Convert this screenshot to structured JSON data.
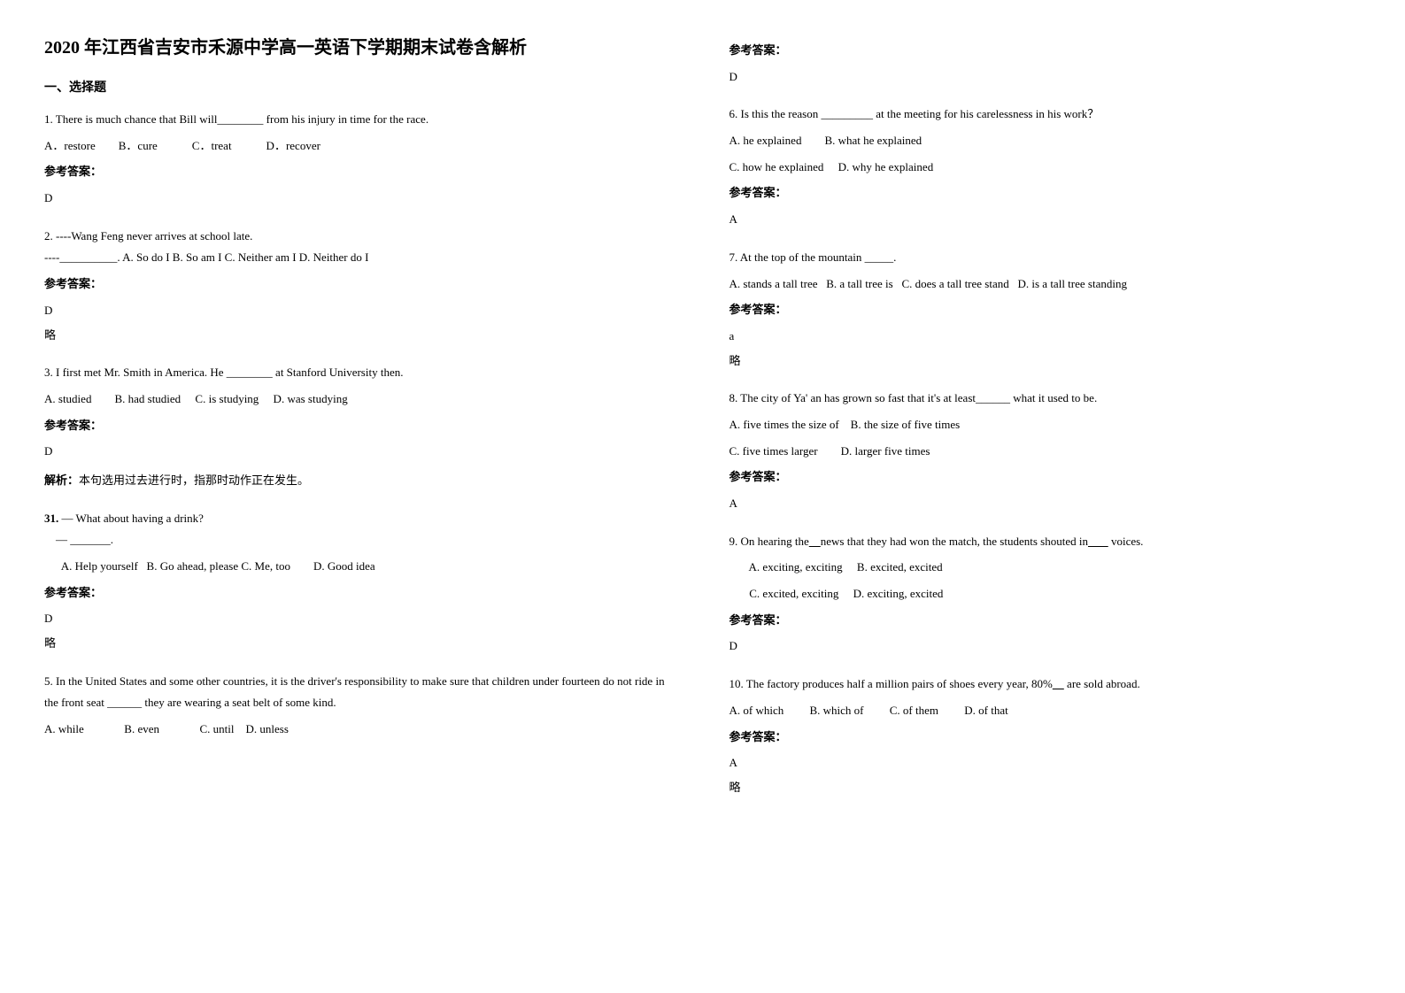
{
  "title": "2020 年江西省吉安市禾源中学高一英语下学期期末试卷含解析",
  "section1_heading": "一、选择题",
  "q1": {
    "text": "1. There is much chance that Bill will________ from his injury in time for the race.",
    "opts": "A．restore        B．cure            C．treat            D．recover",
    "answer_label": "参考答案：",
    "answer": "D"
  },
  "q2": {
    "text": "2. ----Wang Feng never arrives at school late.",
    "text2": "----__________. A. So do I        B. So am I        C. Neither am I   D. Neither do I",
    "answer_label": "参考答案：",
    "answer": "D",
    "omit": "略"
  },
  "q3": {
    "text": "3. I first met Mr. Smith in America. He ________ at Stanford University then.",
    "opts": "A. studied        B. had studied     C. is studying     D. was studying",
    "answer_label": "参考答案：",
    "answer": "D",
    "explanation_label": "解析：",
    "explanation": "本句选用过去进行时，指那时动作正在发生。"
  },
  "q31": {
    "text": "31. — What about having a drink?",
    "text2": "    — _______.",
    "opts": "      A. Help yourself   B. Go ahead, please C. Me, too        D. Good idea",
    "answer_label": "参考答案：",
    "answer": "D",
    "omit": "略"
  },
  "q5": {
    "text": "5. In the United States and some other countries, it is the driver's responsibility to make sure that children under fourteen do not ride in the front seat ______ they are wearing a seat belt of some kind.",
    "opts": "A. while              B. even              C. until    D. unless",
    "answer_label": "参考答案：",
    "answer": "D"
  },
  "q6": {
    "text": "6. Is this the reason _________ at the meeting for his carelessness in his work？",
    "opts1": "A. he explained        B. what he explained",
    "opts2": "C. how he explained     D. why he explained",
    "answer_label": "参考答案：",
    "answer": "A"
  },
  "q7": {
    "text": "7. At the top of the mountain _____.",
    "opts": "A. stands a tall tree   B. a tall tree is   C. does a tall tree stand   D. is a tall tree standing",
    "answer_label": "参考答案：",
    "answer": "a",
    "omit": "略"
  },
  "q8": {
    "text": "8. The city of Ya' an has grown so fast that it's at least______ what it used to be.",
    "opts1": "A. five times the size of    B. the size of five times",
    "opts2": "C. five times larger        D. larger five times",
    "answer_label": "参考答案：",
    "answer": "A"
  },
  "q9": {
    "text": "9. On hearing the    news that they had won the match, the students shouted in        voices.",
    "opts1": "       A. exciting, exciting     B. excited, excited",
    "opts2": "       C. excited, exciting     D. exciting, excited",
    "answer_label": "参考答案：",
    "answer": "D"
  },
  "q10": {
    "text": "10. The factory produces half a million pairs of shoes every year, 80%     are sold abroad.",
    "opts": "A. of which         B. which of         C. of them         D. of that",
    "answer_label": "参考答案：",
    "answer": "A",
    "omit": "略"
  }
}
